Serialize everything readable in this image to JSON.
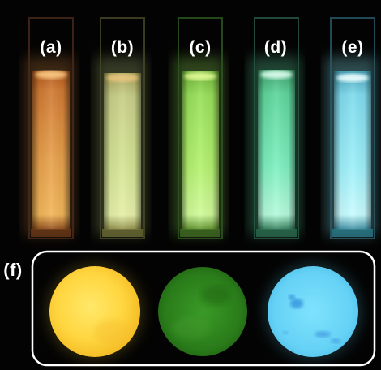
{
  "panel_top": {
    "cuvettes": [
      {
        "label": "(a)",
        "color": "#f0a040"
      },
      {
        "label": "(b)",
        "color": "#cfe88a"
      },
      {
        "label": "(c)",
        "color": "#a6f25a"
      },
      {
        "label": "(d)",
        "color": "#6cf0b4"
      },
      {
        "label": "(e)",
        "color": "#8ef0f8"
      }
    ]
  },
  "panel_bottom": {
    "label": "(f)",
    "frame_color": "#ffffff",
    "discs": [
      {
        "name": "yellow-disc",
        "color": "#ffe04a"
      },
      {
        "name": "green-disc",
        "color": "#2f8a1e"
      },
      {
        "name": "blue-disc",
        "color": "#68d8f8"
      }
    ]
  }
}
